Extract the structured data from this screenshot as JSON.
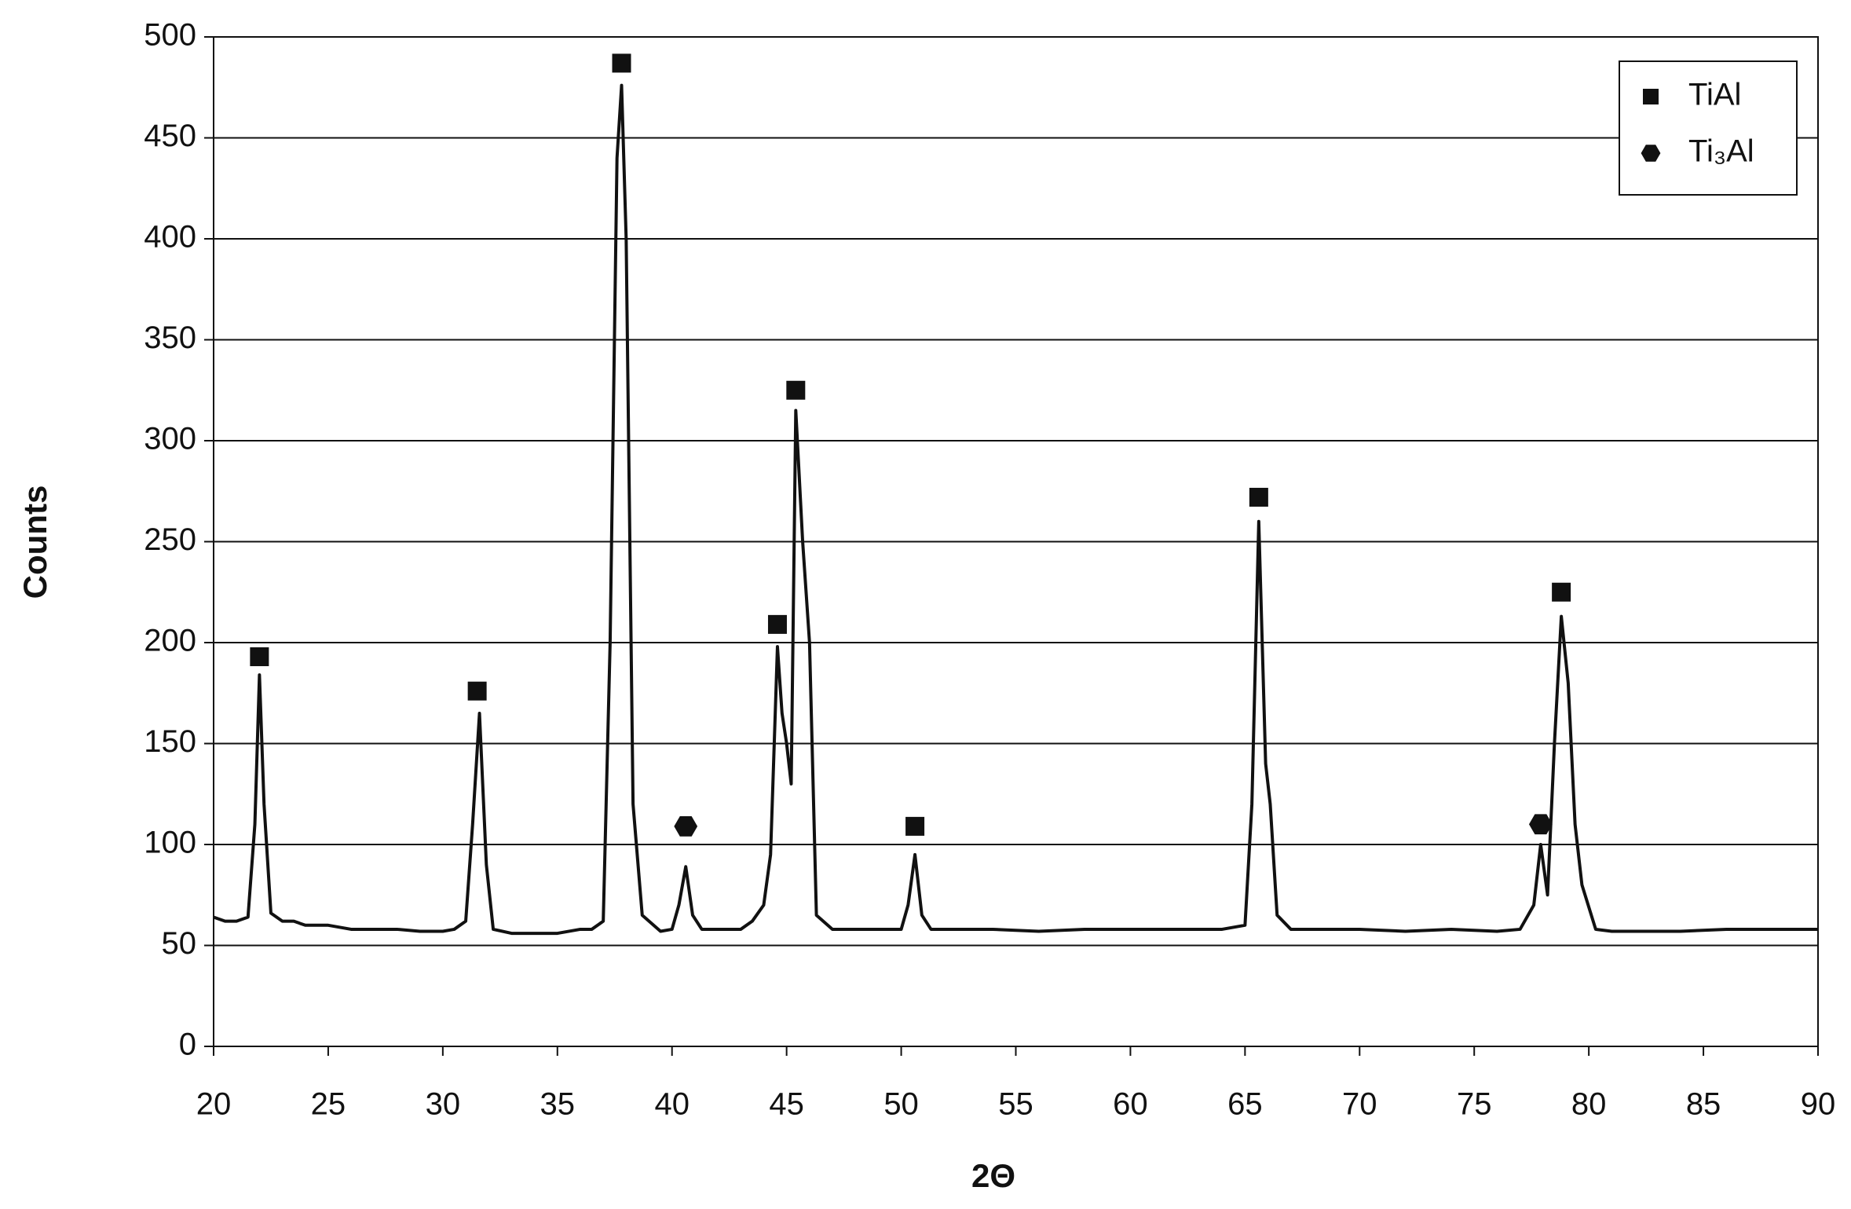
{
  "chart_data": {
    "type": "line",
    "x_label": "2Θ",
    "y_label": "Counts",
    "x": [
      20,
      20.5,
      21,
      21.5,
      21.8,
      22.0,
      22.2,
      22.5,
      23,
      23.5,
      24,
      25,
      26,
      27,
      28,
      29,
      30,
      30.5,
      31,
      31.3,
      31.6,
      31.9,
      32.2,
      33,
      34,
      35,
      36,
      36.5,
      37,
      37.3,
      37.6,
      37.8,
      38.0,
      38.3,
      38.7,
      39.5,
      40,
      40.3,
      40.6,
      40.9,
      41.3,
      42,
      43,
      43.5,
      44,
      44.3,
      44.6,
      44.8,
      45.0,
      45.2,
      45.4,
      45.7,
      46.0,
      46.3,
      47,
      48,
      49,
      50,
      50.3,
      50.6,
      50.9,
      51.3,
      52,
      54,
      56,
      58,
      60,
      62,
      64,
      65,
      65.3,
      65.6,
      65.9,
      66.1,
      66.4,
      67,
      68,
      70,
      72,
      74,
      76,
      77,
      77.6,
      77.9,
      78.2,
      78.5,
      78.8,
      79.1,
      79.4,
      79.7,
      80.3,
      81,
      82,
      84,
      86,
      88,
      90
    ],
    "series": [
      {
        "color": "#111111",
        "values": [
          64,
          62,
          62,
          64,
          110,
          184,
          120,
          66,
          62,
          62,
          60,
          60,
          58,
          58,
          58,
          57,
          57,
          58,
          62,
          110,
          165,
          90,
          58,
          56,
          56,
          56,
          58,
          58,
          62,
          200,
          440,
          476,
          400,
          120,
          65,
          57,
          58,
          70,
          89,
          65,
          58,
          58,
          58,
          62,
          70,
          95,
          198,
          165,
          150,
          130,
          315,
          250,
          200,
          65,
          58,
          58,
          58,
          58,
          70,
          95,
          65,
          58,
          58,
          58,
          57,
          58,
          58,
          58,
          58,
          60,
          120,
          260,
          140,
          120,
          65,
          58,
          58,
          58,
          57,
          58,
          57,
          58,
          70,
          100,
          75,
          150,
          213,
          180,
          110,
          80,
          58,
          57,
          57,
          57,
          58,
          58,
          58
        ]
      },
      {
        "name": "TiAl",
        "marker": "square",
        "color": "#111111",
        "x": [
          22.0,
          31.5,
          37.8,
          44.6,
          45.4,
          50.6,
          65.6,
          78.8
        ],
        "values": [
          193,
          176,
          487,
          209,
          325,
          109,
          272,
          225
        ]
      },
      {
        "name": "Ti₃Al",
        "marker": "hexagon",
        "color": "#111111",
        "x": [
          40.6,
          77.9
        ],
        "values": [
          109,
          110
        ]
      }
    ],
    "xlim": [
      20,
      90
    ],
    "xticks": [
      20,
      25,
      30,
      35,
      40,
      45,
      50,
      55,
      60,
      65,
      70,
      75,
      80,
      85,
      90
    ],
    "ylim": [
      0,
      500
    ],
    "yticks": [
      0,
      50,
      100,
      150,
      200,
      250,
      300,
      350,
      400,
      450,
      500
    ],
    "grid": true,
    "legend": "upper right"
  }
}
